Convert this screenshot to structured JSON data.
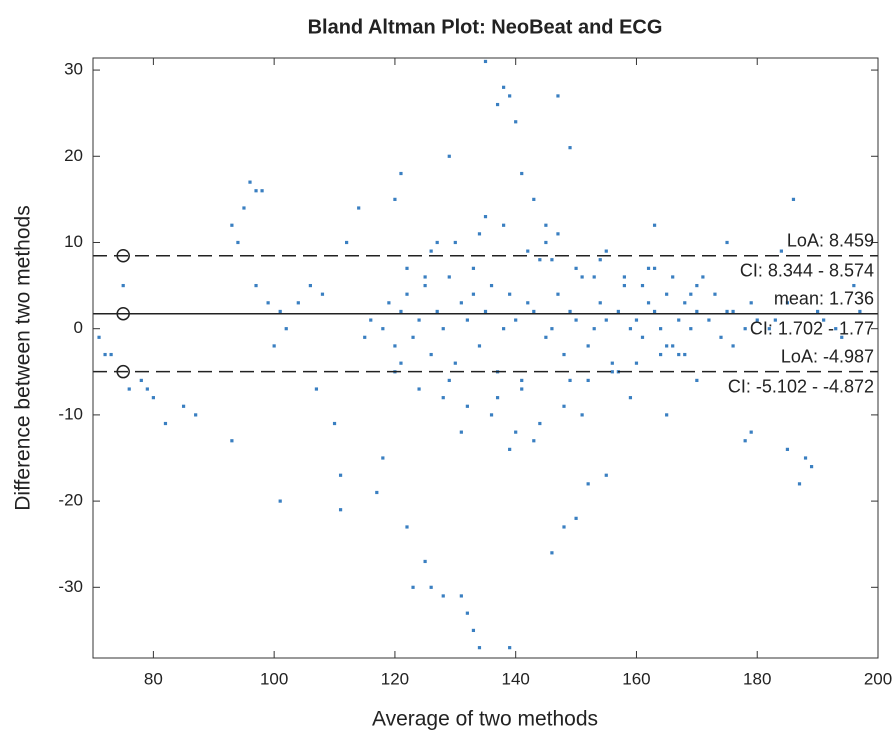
{
  "chart_data": {
    "type": "scatter",
    "title": "Bland Altman Plot: NeoBeat and ECG",
    "x_label": "Average of two methods",
    "y_label": "Difference between two methods",
    "xlim": [
      70,
      200
    ],
    "ylim": [
      -38.2,
      31.4
    ],
    "xticks": [
      80,
      100,
      120,
      140,
      160,
      180,
      200
    ],
    "yticks": [
      -30,
      -20,
      -10,
      0,
      10,
      20,
      30
    ],
    "color": "#3a7fc1",
    "marker_x": 75,
    "reference_lines": [
      {
        "value": 8.459,
        "style": "dashed",
        "labels": [
          "LoA: 8.459",
          "CI: 8.344 - 8.574"
        ]
      },
      {
        "value": 1.736,
        "style": "solid",
        "labels": [
          "mean: 1.736",
          "CI: 1.702 - 1.77"
        ]
      },
      {
        "value": -4.987,
        "style": "dashed",
        "labels": [
          "LoA: -4.987",
          "CI: -5.102 - -4.872"
        ]
      }
    ],
    "x": [
      71,
      72,
      73,
      75,
      76,
      78,
      79,
      80,
      82,
      85,
      87,
      93,
      93,
      94,
      95,
      96,
      97,
      98,
      97,
      99,
      100,
      101,
      101,
      102,
      104,
      106,
      107,
      108,
      110,
      111,
      111,
      112,
      114,
      115,
      117,
      118,
      120,
      121,
      122,
      123,
      125,
      126,
      128,
      129,
      131,
      132,
      133,
      134,
      135,
      137,
      138,
      139,
      139,
      140,
      141,
      143,
      145,
      146,
      147,
      148,
      149,
      150,
      152,
      155,
      163,
      165,
      170,
      175,
      178,
      179,
      184,
      185,
      186,
      187,
      188,
      189,
      190,
      193,
      196,
      116,
      118,
      119,
      120,
      121,
      122,
      123,
      124,
      125,
      126,
      127,
      128,
      129,
      130,
      131,
      132,
      133,
      134,
      135,
      136,
      137,
      138,
      139,
      140,
      141,
      142,
      143,
      144,
      145,
      146,
      147,
      148,
      149,
      150,
      151,
      152,
      153,
      154,
      155,
      156,
      157,
      158,
      159,
      160,
      161,
      162,
      163,
      164,
      165,
      166,
      167,
      168,
      169,
      170,
      172,
      174,
      176,
      178,
      180,
      182,
      120,
      122,
      124,
      126,
      128,
      130,
      132,
      134,
      136,
      138,
      140,
      142,
      144,
      146,
      148,
      150,
      152,
      154,
      156,
      158,
      160,
      162,
      164,
      166,
      168,
      170,
      173,
      176,
      179,
      183,
      121,
      125,
      129,
      133,
      137,
      141,
      145,
      149,
      153,
      157,
      161,
      165,
      169,
      127,
      131,
      135,
      139,
      143,
      147,
      151,
      155,
      159,
      163,
      167,
      171,
      175,
      185,
      191,
      194,
      197
    ],
    "y": [
      -1,
      -3,
      -3,
      5,
      -7,
      -6,
      -7,
      -8,
      -11,
      -9,
      -10,
      12,
      -13,
      10,
      14,
      17,
      16,
      16,
      5,
      3,
      -2,
      -20,
      2,
      0,
      3,
      5,
      -7,
      4,
      -11,
      -17,
      -21,
      10,
      14,
      -1,
      -19,
      -15,
      15,
      18,
      -23,
      -30,
      -27,
      -30,
      -31,
      20,
      -31,
      -33,
      -35,
      -37,
      31,
      26,
      28,
      27,
      -37,
      24,
      18,
      15,
      10,
      -26,
      27,
      -23,
      21,
      -22,
      -18,
      -17,
      12,
      -10,
      -6,
      10,
      -13,
      -12,
      9,
      -14,
      15,
      -18,
      -15,
      -16,
      2,
      0,
      5,
      1,
      0,
      3,
      -2,
      2,
      4,
      -1,
      1,
      5,
      -3,
      2,
      0,
      6,
      -4,
      3,
      1,
      7,
      -2,
      2,
      5,
      -5,
      0,
      4,
      1,
      -6,
      3,
      2,
      8,
      -1,
      0,
      4,
      -3,
      2,
      1,
      6,
      -2,
      0,
      3,
      1,
      -4,
      2,
      5,
      0,
      1,
      -1,
      3,
      2,
      0,
      4,
      -2,
      1,
      3,
      0,
      2,
      1,
      -1,
      2,
      0,
      1,
      0,
      -5,
      7,
      -7,
      9,
      -8,
      10,
      -9,
      11,
      -10,
      12,
      -12,
      9,
      -11,
      8,
      -9,
      7,
      -6,
      8,
      -5,
      6,
      -4,
      7,
      -3,
      6,
      -3,
      5,
      4,
      -2,
      3,
      1,
      -4,
      6,
      -6,
      4,
      -8,
      -7,
      12,
      -6,
      6,
      -5,
      5,
      -2,
      4,
      10,
      -12,
      13,
      -14,
      -13,
      11,
      -10,
      9,
      -8,
      7,
      -3,
      6,
      2,
      3,
      1,
      -1,
      2
    ]
  }
}
